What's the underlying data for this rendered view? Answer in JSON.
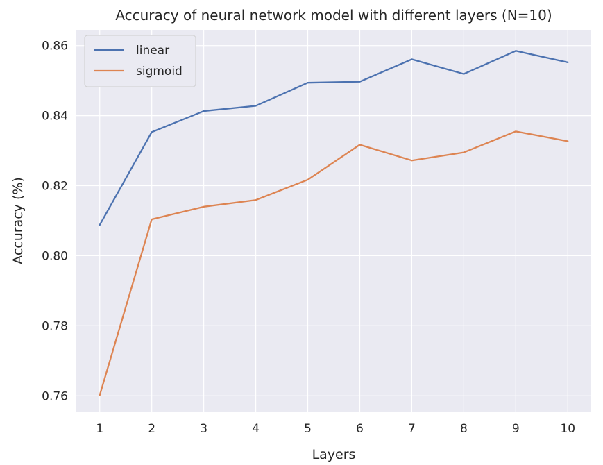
{
  "chart_data": {
    "type": "line",
    "title": "Accuracy of neural network model with different layers (N=10)",
    "xlabel": "Layers",
    "ylabel": "Accuracy (%)",
    "x": [
      1,
      2,
      3,
      4,
      5,
      6,
      7,
      8,
      9,
      10
    ],
    "ylim": [
      0.7555,
      0.8645
    ],
    "yticks": [
      0.76,
      0.78,
      0.8,
      0.82,
      0.84,
      0.86
    ],
    "ytick_labels": [
      "0.76",
      "0.78",
      "0.80",
      "0.82",
      "0.84",
      "0.86"
    ],
    "xtick_labels": [
      "1",
      "2",
      "3",
      "4",
      "5",
      "6",
      "7",
      "8",
      "9",
      "10"
    ],
    "grid": true,
    "legend_position": "top-left",
    "series": [
      {
        "name": "linear",
        "color": "#4c72b0",
        "values": [
          0.8088,
          0.8353,
          0.8413,
          0.8428,
          0.8494,
          0.8497,
          0.8561,
          0.8519,
          0.8585,
          0.8552
        ]
      },
      {
        "name": "sigmoid",
        "color": "#dd8452",
        "values": [
          0.7602,
          0.8104,
          0.814,
          0.8159,
          0.8217,
          0.8317,
          0.8272,
          0.8295,
          0.8355,
          0.8327
        ]
      }
    ],
    "background_color": "#eaeaf2",
    "grid_color": "#ffffff"
  }
}
